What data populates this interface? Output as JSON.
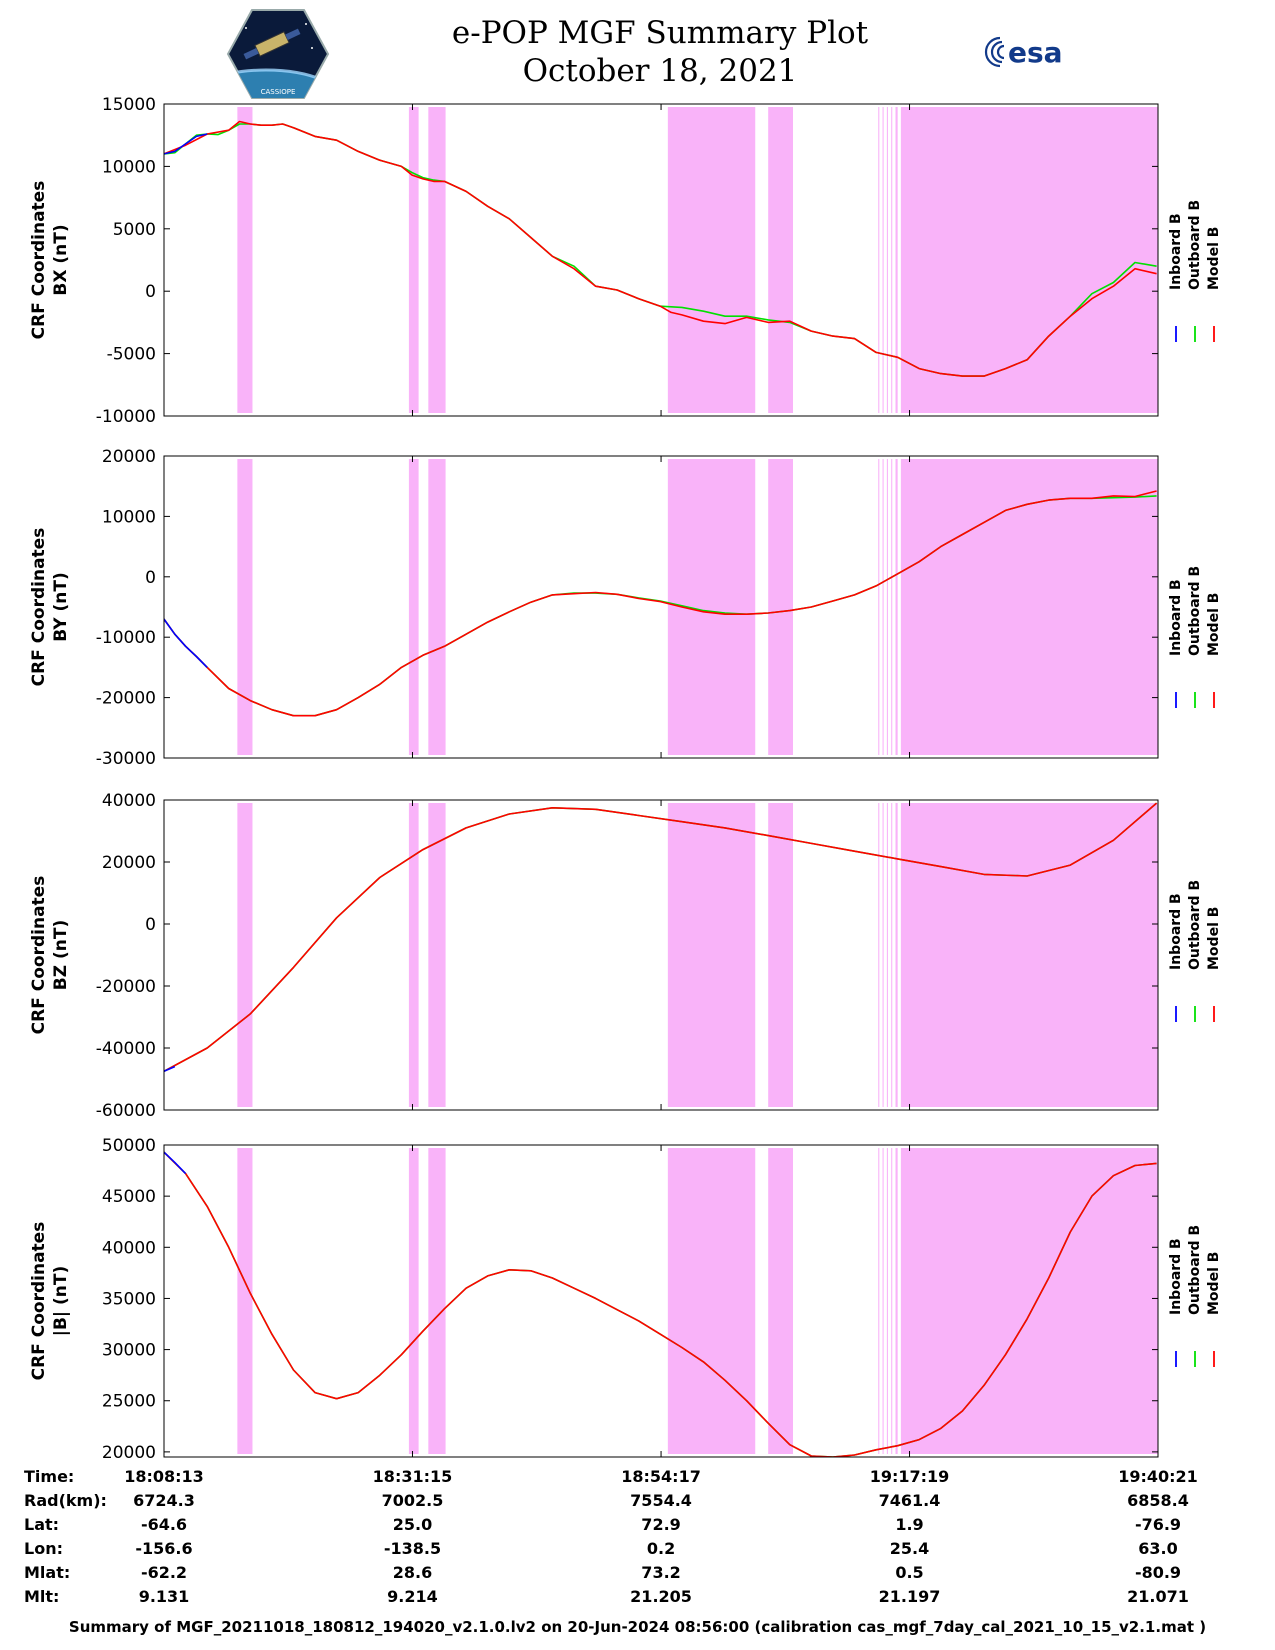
{
  "header": {
    "title_line1": "e-POP MGF Summary Plot",
    "title_line2": "October 18, 2021",
    "left_logo": "cassiope-mission-logo",
    "left_logo_caption": "CASSIOPE",
    "right_logo": "esa-logo",
    "right_logo_text": "esa"
  },
  "colors": {
    "inboard": "#0000ff",
    "outboard": "#00e000",
    "model": "#ff0000",
    "shading": "#f9b3f9"
  },
  "legend": [
    "Inboard B",
    "Outboard B",
    "Model B"
  ],
  "shaded_intervals_minutes": [
    [
      6.8,
      8.2
    ],
    [
      22.7,
      23.6
    ],
    [
      24.5,
      26.1
    ],
    [
      46.7,
      54.8
    ],
    [
      56.0,
      58.3
    ],
    [
      66.2,
      66.3
    ],
    [
      66.6,
      66.7
    ],
    [
      67.0,
      67.1
    ],
    [
      67.4,
      67.5
    ],
    [
      67.8,
      68.0
    ],
    [
      68.3,
      92.1
    ]
  ],
  "x_axis": {
    "tick_minutes": [
      0,
      23.03,
      46.07,
      69.1,
      92.13
    ]
  },
  "chart_data": [
    {
      "type": "line",
      "ylabel_line1": "CRF Coordinates",
      "ylabel_line2": "BX (nT)",
      "ylim": [
        -10000,
        15000
      ],
      "yticks": [
        15000,
        10000,
        5000,
        0,
        -5000,
        -10000
      ],
      "ytick_labels": [
        "15000",
        "10000",
        "5000",
        "0",
        "-5000",
        "-10000"
      ],
      "grid": false,
      "legend_placement": "right",
      "x_minutes": [
        0,
        1,
        2,
        3,
        4,
        5,
        6,
        7,
        8,
        9,
        10,
        11,
        12,
        14,
        16,
        18,
        20,
        22,
        23,
        24,
        25,
        26,
        28,
        30,
        32,
        34,
        36,
        38,
        40,
        42,
        44,
        46,
        47,
        48,
        50,
        52,
        54,
        56,
        58,
        60,
        62,
        64,
        66,
        68,
        70,
        72,
        74,
        76,
        78,
        80,
        82,
        84,
        86,
        88,
        90,
        92
      ],
      "series": [
        {
          "name": "Outboard B",
          "y": [
            11000,
            11100,
            11800,
            12500,
            12600,
            12550,
            12900,
            13400,
            13400,
            13300,
            13300,
            13400,
            13100,
            12400,
            12100,
            11200,
            10500,
            10000,
            9500,
            9100,
            8900,
            8800,
            8000,
            6800,
            5800,
            4300,
            2800,
            2000,
            400,
            100,
            -600,
            -1200,
            -1250,
            -1300,
            -1600,
            -2000,
            -2000,
            -2300,
            -2500,
            -3200,
            -3600,
            -3800,
            -4900,
            -5300,
            -6200,
            -6600,
            -6800,
            -6800,
            -6200,
            -5500,
            -3600,
            -2000,
            -200,
            700,
            2300,
            2000
          ]
        },
        {
          "name": "Model B",
          "x_minutes": [
            0,
            2,
            4,
            6,
            7,
            8,
            9,
            10,
            11,
            12,
            14,
            16,
            18,
            20,
            22,
            23,
            24,
            25,
            26,
            28,
            30,
            32,
            34,
            36,
            38,
            40,
            42,
            44,
            46,
            47,
            48,
            50,
            52,
            54,
            56,
            58,
            60,
            62,
            64,
            66,
            68,
            70,
            72,
            74,
            76,
            78,
            80,
            82,
            84,
            86,
            88,
            90,
            92
          ],
          "y": [
            11000,
            11700,
            12600,
            12900,
            13600,
            13400,
            13300,
            13300,
            13400,
            13100,
            12400,
            12100,
            11200,
            10500,
            10000,
            9300,
            9000,
            8800,
            8800,
            8000,
            6800,
            5800,
            4300,
            2800,
            1800,
            400,
            100,
            -600,
            -1200,
            -1700,
            -1900,
            -2400,
            -2600,
            -2100,
            -2500,
            -2400,
            -3200,
            -3600,
            -3800,
            -4900,
            -5300,
            -6200,
            -6600,
            -6800,
            -6800,
            -6200,
            -5500,
            -3600,
            -2000,
            -600,
            400,
            1800,
            1400
          ]
        },
        {
          "name": "Inboard B",
          "x_minutes": [
            0,
            1,
            2,
            3,
            4
          ],
          "y": [
            11000,
            11200,
            11800,
            12400,
            12600
          ]
        }
      ]
    },
    {
      "type": "line",
      "ylabel_line1": "CRF Coordinates",
      "ylabel_line2": "BY (nT)",
      "ylim": [
        -30000,
        20000
      ],
      "yticks": [
        20000,
        10000,
        0,
        -10000,
        -20000,
        -30000
      ],
      "ytick_labels": [
        "20000",
        "10000",
        "0",
        "-10000",
        "-20000",
        "-30000"
      ],
      "grid": false,
      "legend_placement": "right",
      "x_minutes": [
        0,
        1,
        2,
        3,
        4,
        6,
        8,
        10,
        12,
        14,
        16,
        18,
        20,
        22,
        24,
        26,
        28,
        30,
        32,
        34,
        36,
        38,
        40,
        42,
        44,
        46,
        48,
        50,
        52,
        54,
        56,
        58,
        60,
        62,
        64,
        66,
        68,
        70,
        72,
        74,
        76,
        78,
        80,
        82,
        84,
        86,
        88,
        90,
        92
      ],
      "series": [
        {
          "name": "Outboard B",
          "y": [
            -7000,
            -9500,
            -11500,
            -13200,
            -15000,
            -18500,
            -20500,
            -22000,
            -23000,
            -23000,
            -22000,
            -20000,
            -17800,
            -15000,
            -13000,
            -11500,
            -9500,
            -7500,
            -5800,
            -4200,
            -3000,
            -2700,
            -2700,
            -2900,
            -3500,
            -4000,
            -4800,
            -5600,
            -6000,
            -6200,
            -6000,
            -5600,
            -5000,
            -4000,
            -3000,
            -1500,
            500,
            2500,
            5000,
            7000,
            9000,
            11000,
            12000,
            12700,
            13000,
            13000,
            13100,
            13200,
            13400
          ]
        },
        {
          "name": "Model B",
          "y": [
            -7000,
            -9500,
            -11500,
            -13200,
            -15000,
            -18500,
            -20500,
            -22000,
            -23000,
            -23000,
            -22000,
            -20000,
            -17800,
            -15000,
            -13000,
            -11500,
            -9500,
            -7500,
            -5800,
            -4200,
            -3000,
            -2800,
            -2600,
            -2900,
            -3600,
            -4100,
            -5000,
            -5800,
            -6200,
            -6200,
            -6000,
            -5600,
            -5000,
            -4000,
            -3000,
            -1500,
            500,
            2500,
            5000,
            7000,
            9000,
            11000,
            12000,
            12700,
            13000,
            13000,
            13400,
            13300,
            14200
          ]
        },
        {
          "name": "Inboard B",
          "x_minutes": [
            0,
            1,
            2,
            3,
            4
          ],
          "y": [
            -7000,
            -9500,
            -11500,
            -13200,
            -15000
          ]
        }
      ]
    },
    {
      "type": "line",
      "ylabel_line1": "CRF Coordinates",
      "ylabel_line2": "BZ (nT)",
      "ylim": [
        -60000,
        40000
      ],
      "yticks": [
        40000,
        20000,
        0,
        -20000,
        -40000,
        -60000
      ],
      "ytick_labels": [
        "40000",
        "20000",
        "0",
        "-20000",
        "-40000",
        "-60000"
      ],
      "grid": false,
      "legend_placement": "right",
      "x_minutes": [
        0,
        4,
        8,
        12,
        16,
        20,
        24,
        28,
        32,
        36,
        40,
        44,
        48,
        52,
        56,
        60,
        64,
        68,
        72,
        76,
        80,
        84,
        88,
        92
      ],
      "series": [
        {
          "name": "Outboard B",
          "y": [
            -47500,
            -40000,
            -29000,
            -14000,
            2000,
            15000,
            24000,
            31000,
            35500,
            37500,
            37000,
            35000,
            33000,
            31000,
            28500,
            26000,
            23500,
            21000,
            18500,
            16000,
            15500,
            19000,
            27000,
            39000
          ]
        },
        {
          "name": "Model B",
          "y": [
            -47500,
            -40000,
            -29000,
            -14000,
            2000,
            15000,
            24000,
            31000,
            35500,
            37500,
            37000,
            35000,
            33000,
            31000,
            28500,
            26000,
            23500,
            21000,
            18500,
            16000,
            15500,
            19000,
            27000,
            39000
          ]
        },
        {
          "name": "Inboard B",
          "x_minutes": [
            0,
            1
          ],
          "y": [
            -47500,
            -46000
          ]
        }
      ]
    },
    {
      "type": "line",
      "ylabel_line1": "CRF Coordinates",
      "ylabel_line2": "|B| (nT)",
      "ylim": [
        19500,
        50000
      ],
      "yticks": [
        50000,
        45000,
        40000,
        35000,
        30000,
        25000,
        20000
      ],
      "ytick_labels": [
        "50000",
        "45000",
        "40000",
        "35000",
        "30000",
        "25000",
        "20000"
      ],
      "grid": false,
      "legend_placement": "right",
      "x_minutes": [
        0,
        2,
        4,
        6,
        8,
        10,
        12,
        14,
        16,
        18,
        20,
        22,
        24,
        26,
        28,
        30,
        32,
        34,
        36,
        38,
        40,
        42,
        44,
        46,
        48,
        50,
        52,
        54,
        56,
        58,
        60,
        62,
        64,
        66,
        68,
        70,
        72,
        74,
        76,
        78,
        80,
        82,
        84,
        86,
        88,
        90,
        92
      ],
      "series": [
        {
          "name": "Outboard B",
          "y": [
            49300,
            47200,
            44000,
            40000,
            35500,
            31500,
            28000,
            25800,
            25200,
            25800,
            27500,
            29500,
            31800,
            34000,
            36000,
            37200,
            37800,
            37700,
            37000,
            36000,
            35000,
            33900,
            32800,
            31500,
            30200,
            28800,
            27000,
            25000,
            22800,
            20700,
            19600,
            19500,
            19700,
            20200,
            20600,
            21200,
            22300,
            24000,
            26500,
            29500,
            33000,
            37000,
            41500,
            45000,
            47000,
            48000,
            48200
          ]
        },
        {
          "name": "Model B",
          "y": [
            49300,
            47200,
            44000,
            40000,
            35500,
            31500,
            28000,
            25800,
            25200,
            25800,
            27500,
            29500,
            31800,
            34000,
            36000,
            37200,
            37800,
            37700,
            37000,
            36000,
            35000,
            33900,
            32800,
            31500,
            30200,
            28800,
            27000,
            25000,
            22800,
            20700,
            19600,
            19500,
            19700,
            20200,
            20600,
            21200,
            22300,
            24000,
            26500,
            29500,
            33000,
            37000,
            41500,
            45000,
            47000,
            48000,
            48200
          ]
        },
        {
          "name": "Inboard B",
          "x_minutes": [
            0,
            1,
            2
          ],
          "y": [
            49300,
            48300,
            47200
          ]
        }
      ]
    }
  ],
  "footer": {
    "row_labels": [
      "Time:",
      "Rad(km):",
      "Lat:",
      "Lon:",
      "Mlat:",
      "Mlt:"
    ],
    "columns": [
      [
        "18:08:13",
        "6724.3",
        "-64.6",
        "-156.6",
        "-62.2",
        "9.131"
      ],
      [
        "18:31:15",
        "7002.5",
        "25.0",
        "-138.5",
        "28.6",
        "9.214"
      ],
      [
        "18:54:17",
        "7554.4",
        "72.9",
        "0.2",
        "73.2",
        "21.205"
      ],
      [
        "19:17:19",
        "7461.4",
        "1.9",
        "25.4",
        "0.5",
        "21.197"
      ],
      [
        "19:40:21",
        "6858.4",
        "-76.9",
        "63.0",
        "-80.9",
        "21.071"
      ]
    ],
    "summary": "Summary of MGF_20211018_180812_194020_v2.1.0.lv2 on 20-Jun-2024 08:56:00 (calibration cas_mgf_7day_cal_2021_10_15_v2.1.mat )"
  }
}
